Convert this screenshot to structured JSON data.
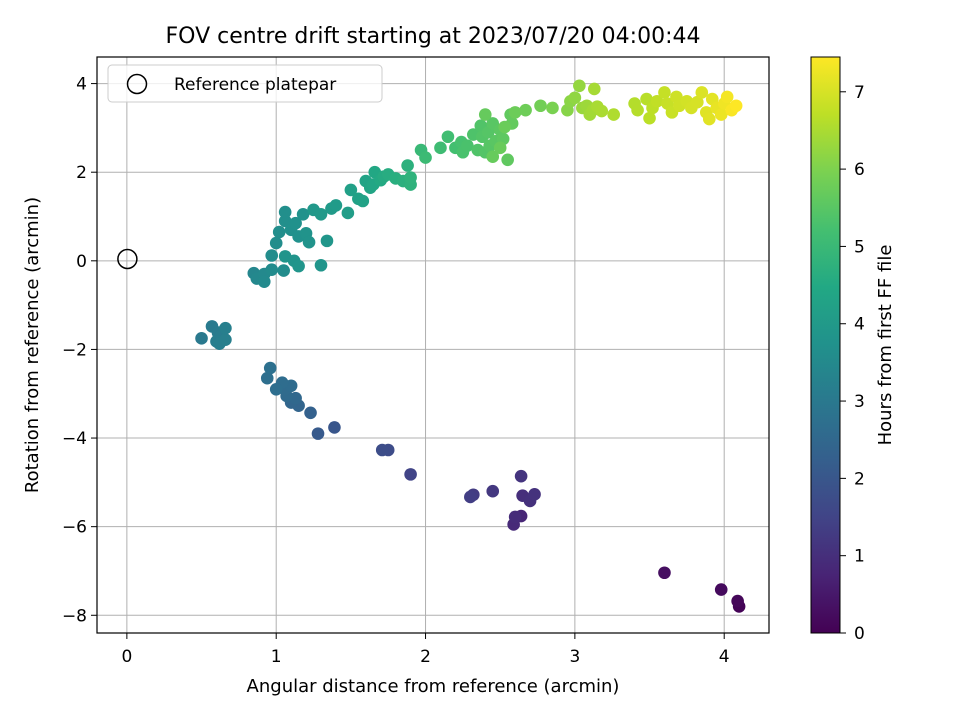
{
  "chart_data": {
    "type": "scatter",
    "title": "FOV centre drift starting at 2023/07/20 04:00:44",
    "xlabel": "Angular distance from reference (arcmin)",
    "ylabel": "Rotation from reference (arcmin)",
    "xlim": [
      -0.2,
      4.3
    ],
    "ylim": [
      -8.4,
      4.6
    ],
    "xticks": [
      0,
      1,
      2,
      3,
      4
    ],
    "yticks": [
      -8,
      -6,
      -4,
      -2,
      0,
      2,
      4
    ],
    "xtick_labels": [
      "0",
      "1",
      "2",
      "3",
      "4"
    ],
    "ytick_labels": [
      "−8",
      "−6",
      "−4",
      "−2",
      "0",
      "2",
      "4"
    ],
    "grid": true,
    "legend": {
      "position": "top-left",
      "entries": [
        "Reference platepar"
      ]
    },
    "reference_point": {
      "x": 0,
      "y": 0,
      "label": "Reference platepar"
    },
    "colorbar": {
      "label": "Hours from first FF file",
      "colormap": "viridis",
      "min": 0,
      "max": 7.45,
      "ticks": [
        0,
        1,
        2,
        3,
        4,
        5,
        6,
        7
      ],
      "tick_labels": [
        "0",
        "1",
        "2",
        "3",
        "4",
        "5",
        "6",
        "7"
      ]
    },
    "series": [
      {
        "color_by": "hours",
        "points": [
          [
            4.1,
            -7.8,
            0.05
          ],
          [
            4.09,
            -7.68,
            0.12
          ],
          [
            3.98,
            -7.42,
            0.2
          ],
          [
            3.6,
            -7.04,
            0.3
          ],
          [
            2.64,
            -5.76,
            0.8
          ],
          [
            2.59,
            -5.95,
            0.88
          ],
          [
            2.6,
            -5.78,
            0.92
          ],
          [
            2.65,
            -5.3,
            1.0
          ],
          [
            2.7,
            -5.42,
            1.05
          ],
          [
            2.73,
            -5.27,
            1.08
          ],
          [
            2.64,
            -4.86,
            1.12
          ],
          [
            2.45,
            -5.2,
            1.2
          ],
          [
            2.32,
            -5.28,
            1.3
          ],
          [
            2.3,
            -5.33,
            1.35
          ],
          [
            1.9,
            -4.82,
            1.5
          ],
          [
            1.75,
            -4.27,
            1.7
          ],
          [
            1.71,
            -4.27,
            1.75
          ],
          [
            1.39,
            -3.76,
            2.0
          ],
          [
            1.28,
            -3.9,
            2.1
          ],
          [
            1.23,
            -3.43,
            2.3
          ],
          [
            1.15,
            -3.27,
            2.4
          ],
          [
            1.1,
            -3.2,
            2.45
          ],
          [
            1.13,
            -3.1,
            2.5
          ],
          [
            1.07,
            -3.05,
            2.55
          ],
          [
            1.06,
            -2.9,
            2.6
          ],
          [
            1.1,
            -2.82,
            2.62
          ],
          [
            1.04,
            -2.75,
            2.65
          ],
          [
            1.0,
            -2.9,
            2.68
          ],
          [
            0.94,
            -2.65,
            2.7
          ],
          [
            0.96,
            -2.42,
            2.75
          ],
          [
            0.5,
            -1.75,
            3.0
          ],
          [
            0.57,
            -1.48,
            3.05
          ],
          [
            0.61,
            -1.62,
            3.08
          ],
          [
            0.63,
            -1.7,
            3.1
          ],
          [
            0.6,
            -1.82,
            3.12
          ],
          [
            0.62,
            -1.87,
            3.15
          ],
          [
            0.66,
            -1.78,
            3.18
          ],
          [
            0.66,
            -1.52,
            3.2
          ],
          [
            0.85,
            -0.28,
            3.4
          ],
          [
            0.87,
            -0.4,
            3.45
          ],
          [
            0.92,
            -0.3,
            3.5
          ],
          [
            0.92,
            -0.47,
            3.52
          ],
          [
            0.97,
            -0.2,
            3.55
          ],
          [
            1.05,
            -0.22,
            3.58
          ],
          [
            0.97,
            0.12,
            3.6
          ],
          [
            1.0,
            0.4,
            3.62
          ],
          [
            1.02,
            0.65,
            3.65
          ],
          [
            1.06,
            0.9,
            3.66
          ],
          [
            1.06,
            1.1,
            3.68
          ],
          [
            1.1,
            0.7,
            3.7
          ],
          [
            1.13,
            0.85,
            3.72
          ],
          [
            1.15,
            0.55,
            3.74
          ],
          [
            1.18,
            1.05,
            3.76
          ],
          [
            1.2,
            0.62,
            3.78
          ],
          [
            1.22,
            0.42,
            3.8
          ],
          [
            1.06,
            0.1,
            3.82
          ],
          [
            1.12,
            0.0,
            3.83
          ],
          [
            1.15,
            -0.12,
            3.85
          ],
          [
            1.3,
            -0.1,
            3.86
          ],
          [
            1.34,
            0.45,
            3.9
          ],
          [
            1.25,
            1.15,
            3.95
          ],
          [
            1.3,
            1.05,
            4.0
          ],
          [
            1.37,
            1.18,
            4.02
          ],
          [
            1.4,
            1.25,
            4.05
          ],
          [
            1.48,
            1.08,
            4.1
          ],
          [
            1.5,
            1.6,
            4.2
          ],
          [
            1.55,
            1.4,
            4.25
          ],
          [
            1.58,
            1.35,
            4.28
          ],
          [
            1.6,
            1.8,
            4.3
          ],
          [
            1.63,
            1.65,
            4.35
          ],
          [
            1.65,
            1.72,
            4.4
          ],
          [
            1.66,
            2.0,
            4.45
          ],
          [
            1.7,
            1.82,
            4.5
          ],
          [
            1.72,
            1.9,
            4.55
          ],
          [
            1.75,
            1.95,
            4.6
          ],
          [
            1.8,
            1.86,
            4.65
          ],
          [
            1.85,
            1.8,
            4.7
          ],
          [
            1.88,
            2.15,
            4.72
          ],
          [
            1.9,
            1.72,
            4.75
          ],
          [
            1.9,
            1.88,
            4.78
          ],
          [
            1.97,
            2.5,
            5.0
          ],
          [
            2.0,
            2.33,
            5.05
          ],
          [
            2.1,
            2.55,
            5.1
          ],
          [
            2.15,
            2.8,
            5.15
          ],
          [
            2.2,
            2.55,
            5.2
          ],
          [
            2.24,
            2.68,
            5.25
          ],
          [
            2.25,
            2.45,
            5.28
          ],
          [
            2.28,
            2.6,
            5.3
          ],
          [
            2.32,
            2.85,
            5.35
          ],
          [
            2.35,
            2.5,
            5.38
          ],
          [
            2.37,
            3.05,
            5.4
          ],
          [
            2.38,
            2.8,
            5.42
          ],
          [
            2.4,
            2.45,
            5.44
          ],
          [
            2.42,
            2.9,
            5.46
          ],
          [
            2.43,
            2.6,
            5.48
          ],
          [
            2.45,
            3.1,
            5.5
          ],
          [
            2.47,
            2.7,
            5.52
          ],
          [
            2.5,
            2.95,
            5.55
          ],
          [
            2.52,
            2.75,
            5.58
          ],
          [
            2.55,
            2.28,
            5.6
          ],
          [
            2.57,
            3.3,
            5.62
          ],
          [
            2.58,
            3.1,
            5.65
          ],
          [
            2.4,
            3.3,
            5.68
          ],
          [
            2.45,
            2.35,
            5.7
          ],
          [
            2.5,
            2.55,
            5.72
          ],
          [
            2.53,
            3.02,
            5.74
          ],
          [
            2.6,
            3.35,
            5.76
          ],
          [
            2.67,
            3.4,
            5.8
          ],
          [
            2.77,
            3.5,
            5.85
          ],
          [
            2.85,
            3.45,
            5.95
          ],
          [
            2.95,
            3.4,
            6.1
          ],
          [
            2.97,
            3.6,
            6.15
          ],
          [
            3.0,
            3.68,
            6.2
          ],
          [
            3.03,
            3.95,
            6.25
          ],
          [
            3.05,
            3.45,
            6.3
          ],
          [
            3.08,
            3.5,
            6.35
          ],
          [
            3.1,
            3.3,
            6.4
          ],
          [
            3.12,
            3.4,
            6.42
          ],
          [
            3.13,
            3.88,
            6.45
          ],
          [
            3.15,
            3.48,
            6.48
          ],
          [
            3.18,
            3.38,
            6.5
          ],
          [
            3.26,
            3.3,
            6.55
          ],
          [
            3.4,
            3.55,
            6.6
          ],
          [
            3.42,
            3.4,
            6.62
          ],
          [
            3.48,
            3.65,
            6.65
          ],
          [
            3.5,
            3.22,
            6.68
          ],
          [
            3.52,
            3.45,
            6.7
          ],
          [
            3.55,
            3.6,
            6.75
          ],
          [
            3.6,
            3.8,
            6.8
          ],
          [
            3.62,
            3.55,
            6.82
          ],
          [
            3.65,
            3.35,
            6.85
          ],
          [
            3.68,
            3.7,
            6.9
          ],
          [
            3.7,
            3.5,
            6.92
          ],
          [
            3.75,
            3.6,
            6.95
          ],
          [
            3.78,
            3.45,
            6.98
          ],
          [
            3.82,
            3.58,
            7.0
          ],
          [
            3.85,
            3.8,
            7.05
          ],
          [
            3.88,
            3.35,
            7.1
          ],
          [
            3.9,
            3.2,
            7.12
          ],
          [
            3.92,
            3.65,
            7.15
          ],
          [
            3.95,
            3.45,
            7.2
          ],
          [
            3.98,
            3.3,
            7.25
          ],
          [
            4.0,
            3.55,
            7.3
          ],
          [
            4.02,
            3.7,
            7.35
          ],
          [
            4.05,
            3.4,
            7.4
          ],
          [
            4.08,
            3.5,
            7.45
          ]
        ]
      }
    ]
  }
}
